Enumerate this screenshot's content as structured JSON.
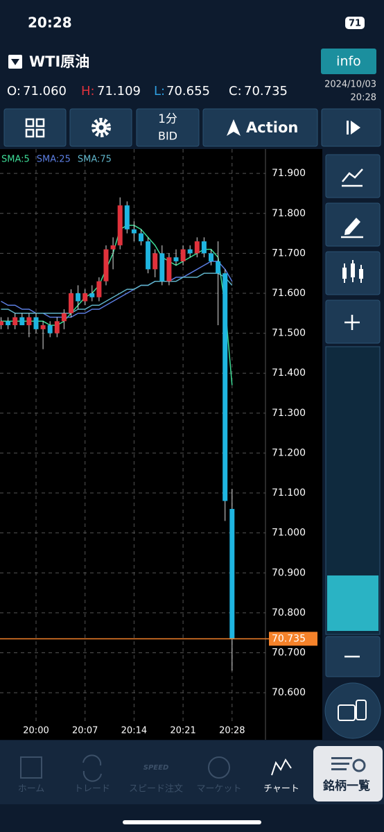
{
  "status_bar": {
    "time": "20:28",
    "battery": "71"
  },
  "header": {
    "symbol": "WTI原油",
    "info": "info",
    "open_label": "O:",
    "open": "71.060",
    "high_label": "H:",
    "high": "71.109",
    "low_label": "L:",
    "low": "70.655",
    "close_label": "C:",
    "close": "70.735",
    "date": "2024/10/03",
    "time": "20:28"
  },
  "toolbar": {
    "interval": "1分",
    "price_type": "BID",
    "action": "Action"
  },
  "chart_data": {
    "type": "candlestick",
    "categories": [
      null,
      null,
      null,
      null,
      null,
      "20:00",
      null,
      null,
      null,
      null,
      null,
      null,
      "20:07",
      null,
      null,
      null,
      null,
      null,
      null,
      "20:14",
      null,
      null,
      null,
      null,
      null,
      null,
      "20:21",
      null,
      null,
      null,
      null,
      null,
      null,
      "20:28"
    ],
    "open": [
      71.52,
      71.53,
      71.52,
      71.54,
      71.52,
      71.54,
      71.51,
      71.52,
      71.5,
      71.53,
      71.55,
      71.6,
      71.58,
      71.6,
      71.59,
      71.63,
      71.71,
      71.72,
      71.82,
      71.76,
      71.75,
      71.73,
      71.66,
      71.7,
      71.63,
      71.69,
      71.68,
      71.71,
      71.7,
      71.73,
      71.7,
      71.68,
      71.65,
      71.06
    ],
    "high": [
      71.54,
      71.54,
      71.55,
      71.55,
      71.55,
      71.55,
      71.53,
      71.53,
      71.54,
      71.56,
      71.61,
      71.62,
      71.61,
      71.62,
      71.64,
      71.72,
      71.74,
      71.84,
      71.83,
      71.78,
      71.76,
      71.74,
      71.71,
      71.72,
      71.7,
      71.71,
      71.72,
      71.72,
      71.74,
      71.74,
      71.71,
      71.73,
      71.66,
      71.11
    ],
    "low": [
      71.51,
      71.51,
      71.51,
      71.52,
      71.49,
      71.5,
      71.46,
      71.49,
      71.49,
      71.51,
      71.54,
      71.56,
      71.57,
      71.58,
      71.58,
      71.62,
      71.66,
      71.71,
      71.75,
      71.73,
      71.72,
      71.65,
      71.64,
      71.62,
      71.62,
      71.67,
      71.67,
      71.69,
      71.69,
      71.69,
      71.67,
      71.52,
      71.03,
      70.655
    ],
    "close": [
      71.53,
      71.52,
      71.54,
      71.52,
      71.54,
      71.51,
      71.52,
      71.5,
      71.53,
      71.55,
      71.6,
      71.58,
      71.6,
      71.59,
      71.63,
      71.71,
      71.72,
      71.82,
      71.76,
      71.75,
      71.73,
      71.66,
      71.7,
      71.63,
      71.69,
      71.68,
      71.71,
      71.7,
      71.73,
      71.7,
      71.68,
      71.65,
      71.08,
      70.735
    ],
    "up_color": "#e0323c",
    "down_color": "#1fb5e0",
    "sma": [
      {
        "name": "SMA:5",
        "color": "#3ddc97",
        "values": [
          71.53,
          71.53,
          71.53,
          71.53,
          71.53,
          71.53,
          71.53,
          71.52,
          71.52,
          71.53,
          71.55,
          71.57,
          71.59,
          71.6,
          71.62,
          71.66,
          71.7,
          71.76,
          71.77,
          71.77,
          71.76,
          71.74,
          71.72,
          71.69,
          71.68,
          71.67,
          71.68,
          71.69,
          71.7,
          71.71,
          71.71,
          71.69,
          71.57,
          71.37
        ]
      },
      {
        "name": "SMA:25",
        "color": "#5b7de0",
        "values": [
          71.58,
          71.57,
          71.57,
          71.56,
          71.56,
          71.55,
          71.55,
          71.54,
          71.54,
          71.54,
          71.54,
          71.55,
          71.55,
          71.56,
          71.56,
          71.57,
          71.58,
          71.59,
          71.6,
          71.61,
          71.62,
          71.62,
          71.63,
          71.63,
          71.63,
          71.64,
          71.64,
          71.65,
          71.66,
          71.67,
          71.68,
          71.68,
          71.66,
          71.63
        ]
      },
      {
        "name": "SMA:75",
        "color": "#5fb3c8",
        "values": [
          71.56,
          71.56,
          71.55,
          71.55,
          71.55,
          71.55,
          71.55,
          71.55,
          71.55,
          71.55,
          71.55,
          71.56,
          71.56,
          71.57,
          71.57,
          71.58,
          71.59,
          71.6,
          71.61,
          71.61,
          71.62,
          71.62,
          71.63,
          71.63,
          71.63,
          71.63,
          71.64,
          71.64,
          71.64,
          71.65,
          71.65,
          71.65,
          71.64,
          71.62
        ]
      }
    ],
    "ylim": [
      70.529,
      71.961
    ],
    "yticks": [
      {
        "value": 71.9,
        "label": "71.900"
      },
      {
        "value": 71.8,
        "label": "71.800"
      },
      {
        "value": 71.7,
        "label": "71.700"
      },
      {
        "value": 71.6,
        "label": "71.600"
      },
      {
        "value": 71.5,
        "label": "71.500"
      },
      {
        "value": 71.4,
        "label": "71.400"
      },
      {
        "value": 71.3,
        "label": "71.300"
      },
      {
        "value": 71.2,
        "label": "71.200"
      },
      {
        "value": 71.1,
        "label": "71.100"
      },
      {
        "value": 71.0,
        "label": "71.000"
      },
      {
        "value": 70.9,
        "label": "70.900"
      },
      {
        "value": 70.8,
        "label": "70.800"
      },
      {
        "value": 70.7,
        "label": "70.700"
      },
      {
        "value": 70.6,
        "label": "70.600"
      }
    ],
    "last_price": 70.735,
    "last_color": "#f5822a",
    "grid": true
  },
  "tabs": [
    "ホーム",
    "トレード",
    "スピード注文",
    "マーケット",
    "チャート",
    "銘柄一覧"
  ],
  "speed_icon": "SPEED"
}
